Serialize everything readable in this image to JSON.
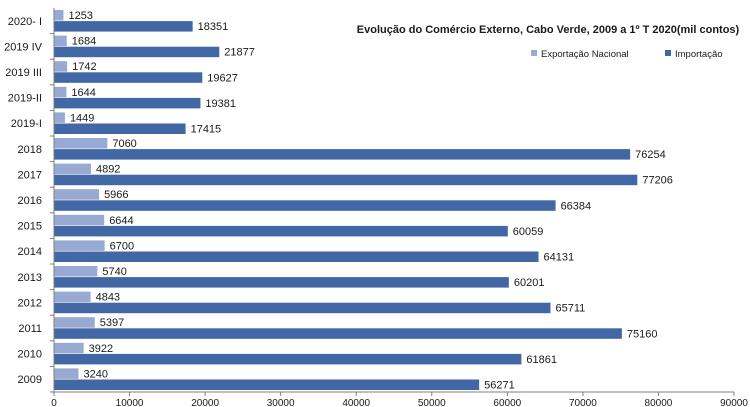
{
  "chart_data": {
    "type": "bar",
    "orientation": "horizontal",
    "title": "Evolução do Comércio Externo, Cabo Verde, 2009 a  1º T 2020(mil contos)",
    "categories": [
      "2020- I",
      "2019 IV",
      "2019 III",
      "2019-II",
      "2019-I",
      "2018",
      "2017",
      "2016",
      "2015",
      "2014",
      "2013",
      "2012",
      "2011",
      "2010",
      "2009"
    ],
    "series": [
      {
        "name": "Exportação Nacional",
        "color": "#98a9d2",
        "values": [
          1253,
          1684,
          1742,
          1644,
          1449,
          7060,
          4892,
          5966,
          6644,
          6700,
          5740,
          4843,
          5397,
          3922,
          3240
        ]
      },
      {
        "name": "Importação",
        "color": "#4267a5",
        "values": [
          18351,
          21877,
          19627,
          19381,
          17415,
          76254,
          77206,
          66384,
          60059,
          64131,
          60201,
          65711,
          75160,
          61861,
          56271
        ]
      }
    ],
    "xlim": [
      0,
      90000
    ],
    "xticks": [
      "0",
      "10000",
      "20000",
      "30000",
      "40000",
      "50000",
      "60000",
      "70000",
      "80000",
      "90000"
    ],
    "grid": false,
    "legend_position": "top-right"
  }
}
